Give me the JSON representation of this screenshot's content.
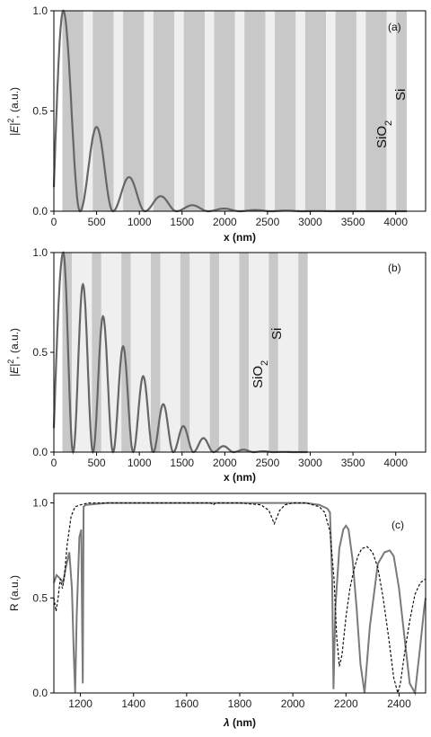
{
  "colors": {
    "si_layer": "#c8c8c8",
    "sio2_layer": "#efefef",
    "curve": "#666666",
    "dashed": "#111111",
    "axis": "#000000"
  },
  "chart_data": [
    {
      "type": "line",
      "panel": "(a)",
      "xlabel": "x (nm)",
      "ylabel_main": "|E|",
      "ylabel_sup": "2",
      "ylabel_unit": ", (a.u.)",
      "xlim": [
        0,
        4350
      ],
      "ylim": [
        0,
        1.0
      ],
      "xticks": [
        0,
        500,
        1000,
        1500,
        2000,
        2500,
        3000,
        3500,
        4000
      ],
      "yticks": [
        0.0,
        0.5,
        1.0
      ],
      "materials": {
        "sio2_main": "SiO",
        "sio2_sub": "2",
        "si": "Si"
      },
      "layer_stack": {
        "start": 100,
        "end": 4130,
        "first": "Si",
        "si_thickness": 245,
        "sio2_thickness": 110
      },
      "peaks": {
        "x": [
          110,
          500,
          880,
          1250,
          1620,
          1990,
          2360,
          2720,
          3090
        ],
        "y": [
          1.0,
          0.42,
          0.17,
          0.075,
          0.03,
          0.013,
          0.006,
          0.003,
          0.001
        ]
      },
      "end_x": 4130
    },
    {
      "type": "line",
      "panel": "(b)",
      "xlabel": "x (nm)",
      "ylabel_main": "|E|",
      "ylabel_sup": "2",
      "ylabel_unit": ", (a.u.)",
      "xlim": [
        0,
        4350
      ],
      "ylim": [
        0,
        1.0
      ],
      "xticks": [
        0,
        500,
        1000,
        1500,
        2000,
        2500,
        3000,
        3500,
        4000
      ],
      "yticks": [
        0.0,
        0.5,
        1.0
      ],
      "materials": {
        "sio2_main": "SiO",
        "sio2_sub": "2",
        "si": "Si"
      },
      "layer_stack": {
        "start": 100,
        "end": 2970,
        "first": "Si",
        "si_thickness": 110,
        "sio2_thickness": 235
      },
      "peaks": {
        "x": [
          110,
          340,
          575,
          810,
          1045,
          1280,
          1515,
          1750,
          1985,
          2220,
          2450,
          2690
        ],
        "y": [
          1.0,
          0.84,
          0.68,
          0.53,
          0.38,
          0.24,
          0.13,
          0.07,
          0.03,
          0.012,
          0.004,
          0.001
        ]
      },
      "end_x": 2970
    },
    {
      "type": "line",
      "panel": "(c)",
      "xlabel": "λ (nm)",
      "ylabel": "R (a.u.)",
      "xlim": [
        1100,
        2500
      ],
      "ylim": [
        0,
        1.05
      ],
      "xticks": [
        1200,
        1400,
        1600,
        1800,
        2000,
        2200,
        2400
      ],
      "yticks": [
        0.0,
        0.5,
        1.0
      ],
      "series": [
        {
          "style": "solid",
          "x": [
            1100,
            1110,
            1125,
            1135,
            1145,
            1158,
            1168,
            1175,
            1180,
            1186,
            1196,
            1203,
            1207,
            1209,
            1212,
            1220,
            1300,
            1500,
            1700,
            1900,
            2000,
            2050,
            2100,
            2130,
            2140,
            2148,
            2153,
            2160,
            2175,
            2190,
            2200,
            2210,
            2225,
            2240,
            2255,
            2270,
            2290,
            2320,
            2345,
            2365,
            2380,
            2400,
            2420,
            2440,
            2460,
            2480,
            2495,
            2500
          ],
          "y": [
            0.58,
            0.62,
            0.6,
            0.58,
            0.66,
            0.74,
            0.55,
            0.2,
            0.0,
            0.4,
            0.82,
            0.86,
            0.3,
            0.05,
            0.98,
            0.99,
            1.0,
            1.0,
            1.0,
            1.0,
            1.0,
            1.0,
            0.99,
            0.97,
            0.95,
            0.6,
            0.02,
            0.45,
            0.76,
            0.86,
            0.88,
            0.86,
            0.7,
            0.45,
            0.15,
            0.0,
            0.35,
            0.68,
            0.74,
            0.75,
            0.72,
            0.55,
            0.3,
            0.05,
            0.0,
            0.25,
            0.45,
            0.5
          ]
        },
        {
          "style": "dashed",
          "x": [
            1100,
            1108,
            1116,
            1124,
            1132,
            1140,
            1150,
            1165,
            1180,
            1200,
            1230,
            1300,
            1500,
            1690,
            1700,
            1710,
            1800,
            1880,
            1910,
            1930,
            1950,
            1970,
            2000,
            2050,
            2100,
            2120,
            2140,
            2155,
            2165,
            2175,
            2185,
            2200,
            2215,
            2230,
            2245,
            2260,
            2280,
            2300,
            2320,
            2340,
            2360,
            2380,
            2395,
            2405,
            2420,
            2440,
            2460,
            2480,
            2500
          ],
          "y": [
            0.5,
            0.43,
            0.5,
            0.6,
            0.55,
            0.62,
            0.78,
            0.93,
            0.98,
            0.99,
            1.0,
            1.0,
            1.0,
            1.0,
            0.99,
            1.0,
            1.0,
            0.99,
            0.96,
            0.89,
            0.96,
            0.99,
            1.0,
            1.0,
            0.98,
            0.95,
            0.85,
            0.6,
            0.3,
            0.14,
            0.2,
            0.4,
            0.55,
            0.65,
            0.72,
            0.76,
            0.77,
            0.74,
            0.66,
            0.5,
            0.3,
            0.08,
            0.0,
            0.05,
            0.2,
            0.38,
            0.52,
            0.58,
            0.6
          ]
        }
      ]
    }
  ]
}
